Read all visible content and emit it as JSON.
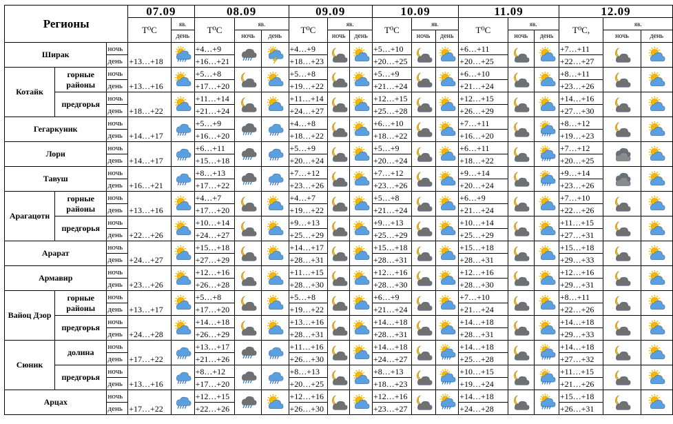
{
  "header": {
    "regions_label": "Регионы",
    "dates": [
      "07.09",
      "08.09",
      "09.09",
      "10.09",
      "11.09",
      "12.09"
    ],
    "temp_labels": [
      "T⁰C",
      "T⁰C",
      "T⁰C",
      "T⁰C",
      "T⁰C",
      "T⁰C,"
    ],
    "phen_label": "яв.",
    "night_label": "ночь",
    "day_label": "день"
  },
  "tod": {
    "night": "ночь",
    "day": "день"
  },
  "regions": [
    {
      "name": "Ширак",
      "areas": [
        {
          "name": "",
          "t07": "+13…+18",
          "t08": [
            "+4…+9",
            "+16…+21"
          ],
          "t09": [
            "+4…+9",
            "+18…+23"
          ],
          "t10": [
            "+5…+10",
            "+20…+25"
          ],
          "t11": [
            "+6…+11",
            "+20…+25"
          ],
          "t12": [
            "+7…+11",
            "+22…+27"
          ]
        }
      ]
    },
    {
      "name": "Котайк",
      "areas": [
        {
          "name": "горные районы",
          "t07": "+13…+16",
          "t08": [
            "+5…+8",
            "+17…+20"
          ],
          "t09": [
            "+5…+8",
            "+19…+22"
          ],
          "t10": [
            "+5…+9",
            "+21…+24"
          ],
          "t11": [
            "+6…+10",
            "+21…+24"
          ],
          "t12": [
            "+8…+11",
            "+23…+26"
          ]
        },
        {
          "name": "предгорья",
          "t07": "+18…+22",
          "t08": [
            "+11…+14",
            "+21…+24"
          ],
          "t09": [
            "+11…+14",
            "+24…+27"
          ],
          "t10": [
            "+12…+15",
            "+25…+28"
          ],
          "t11": [
            "+12…+15",
            "+26…+29"
          ],
          "t12": [
            "+14…+16",
            "+27…+30"
          ]
        }
      ]
    },
    {
      "name": "Гегаркуник",
      "areas": [
        {
          "name": "",
          "t07": "+14…+17",
          "t08": [
            "+5…+9",
            "+16…+20"
          ],
          "t09": [
            "+4…+8",
            "+18…+22"
          ],
          "t10": [
            "+6…+10",
            "+18…+22"
          ],
          "t11": [
            "+7…+11",
            "+16…+20"
          ],
          "t12": [
            "+8…+12",
            "+19…+23"
          ]
        }
      ]
    },
    {
      "name": "Лори",
      "areas": [
        {
          "name": "",
          "t07": "+14…+17",
          "t08": [
            "+6…+11",
            "+15…+18"
          ],
          "t09": [
            "+5…+9",
            "+20…+24"
          ],
          "t10": [
            "+5…+9",
            "+20…+24"
          ],
          "t11": [
            "+6…+11",
            "+18…+22"
          ],
          "t12": [
            "+7…+12",
            "+20…+25"
          ]
        }
      ]
    },
    {
      "name": "Тавуш",
      "areas": [
        {
          "name": "",
          "t07": "+16…+21",
          "t08": [
            "+8…+13",
            "+17…+22"
          ],
          "t09": [
            "+7…+12",
            "+23…+26"
          ],
          "t10": [
            "+7…+12",
            "+23…+26"
          ],
          "t11": [
            "+9…+14",
            "+20…+24"
          ],
          "t12": [
            "+9…+14",
            "+23…+26"
          ]
        }
      ]
    },
    {
      "name": "Арагацотн",
      "areas": [
        {
          "name": "горные районы",
          "t07": "+13…+16",
          "t08": [
            "+4…+7",
            "+17…+20"
          ],
          "t09": [
            "+4…+7",
            "+19…+22"
          ],
          "t10": [
            "+5…+8",
            "+21…+24"
          ],
          "t11": [
            "+6…+9",
            "+21…+24"
          ],
          "t12": [
            "+7…+10",
            "+22…+26"
          ]
        },
        {
          "name": "предгорья",
          "t07": "+22…+26",
          "t08": [
            "+10…+14",
            "+24…+27"
          ],
          "t09": [
            "+9…+13",
            "+25…+29"
          ],
          "t10": [
            "+9…+13",
            "+25…+29"
          ],
          "t11": [
            "+10…+14",
            "+25…+29"
          ],
          "t12": [
            "+11…+15",
            "+27…+31"
          ]
        }
      ]
    },
    {
      "name": "Арарат",
      "areas": [
        {
          "name": "",
          "t07": "+24…+27",
          "t08": [
            "+15…+18",
            "+27…+29"
          ],
          "t09": [
            "+14…+17",
            "+28…+31"
          ],
          "t10": [
            "+15…+18",
            "+28…+31"
          ],
          "t11": [
            "+15…+18",
            "+28…+31"
          ],
          "t12": [
            "+15…+18",
            "+29…+33"
          ]
        }
      ]
    },
    {
      "name": "Армавир",
      "areas": [
        {
          "name": "",
          "t07": "+23…+26",
          "t08": [
            "+12…+16",
            "+26…+28"
          ],
          "t09": [
            "+11…+15",
            "+28…+30"
          ],
          "t10": [
            "+12…+16",
            "+28…+30"
          ],
          "t11": [
            "+12…+16",
            "+28…+30"
          ],
          "t12": [
            "+12…+16",
            "+29…+31"
          ]
        }
      ]
    },
    {
      "name": "Вайоц Дзор",
      "areas": [
        {
          "name": "горные районы",
          "t07": "+13…+17",
          "t08": [
            "+5…+8",
            "+17…+20"
          ],
          "t09": [
            "+5…+8",
            "+19…+22"
          ],
          "t10": [
            "+6…+9",
            "+21…+24"
          ],
          "t11": [
            "+7…+10",
            "+21…+24"
          ],
          "t12": [
            "+8…+11",
            "+22…+26"
          ]
        },
        {
          "name": "предгорья",
          "t07": "+24…+28",
          "t08": [
            "+14…+18",
            "+26…+29"
          ],
          "t09": [
            "+13…+16",
            "+28…+31"
          ],
          "t10": [
            "+14…+18",
            "+28…+31"
          ],
          "t11": [
            "+14…+18",
            "+28…+31"
          ],
          "t12": [
            "+14…+18",
            "+29…+33"
          ]
        }
      ]
    },
    {
      "name": "Сюник",
      "areas": [
        {
          "name": "долина",
          "t07": "+17…+22",
          "t08": [
            "+13…+17",
            "+21…+26"
          ],
          "t09": [
            "+11…+16",
            "+26…+30"
          ],
          "t10": [
            "+14…+18",
            "+24…+27"
          ],
          "t11": [
            "+14…+18",
            "+25…+28"
          ],
          "t12": [
            "+14…+18",
            "+27…+32"
          ]
        },
        {
          "name": "предгорья",
          "t07": "+13…+16",
          "t08": [
            "+8…+12",
            "+17…+20"
          ],
          "t09": [
            "+8…+13",
            "+20…+25"
          ],
          "t10": [
            "+8…+13",
            "+18…+23"
          ],
          "t11": [
            "+10…+15",
            "+19…+24"
          ],
          "t12": [
            "+11…+15",
            "+21…+26"
          ]
        }
      ]
    },
    {
      "name": "Арцах",
      "areas": [
        {
          "name": "",
          "t07": "+17…+22",
          "t08": [
            "+12…+15",
            "+22…+26"
          ],
          "t09": [
            "+12…+16",
            "+26…+30"
          ],
          "t10": [
            "+12…+16",
            "+23…+27"
          ],
          "t11": [
            "+14…+18",
            "+24…+28"
          ],
          "t12": [
            "+15…+18",
            "+26…+31"
          ]
        }
      ]
    }
  ],
  "icons": {
    "07": [
      "sun-rain",
      "sun-cloud",
      "sun-cloud",
      "rain",
      "rain",
      "rain",
      "sun-cloud",
      "sun-cloud",
      "sun-cloud",
      "sun-cloud",
      "sun-cloud",
      "sun-cloud",
      "rain",
      "rain",
      "rain"
    ],
    "08": [
      [
        "storm-cloud",
        "sun-storm"
      ],
      [
        "moon-cloud",
        "sun-cloud"
      ],
      [
        "moon-cloud",
        "sun-cloud"
      ],
      [
        "storm-cloud",
        "rain"
      ],
      [
        "storm-cloud",
        "rain"
      ],
      [
        "storm-cloud",
        "rain"
      ],
      [
        "moon-cloud",
        "sun-cloud"
      ],
      [
        "moon-cloud",
        "sun-cloud"
      ],
      [
        "moon-cloud",
        "sun-cloud"
      ],
      [
        "moon-cloud",
        "sun-cloud"
      ],
      [
        "moon-cloud",
        "sun-cloud"
      ],
      [
        "moon-cloud",
        "sun-cloud"
      ],
      [
        "storm-cloud",
        "rain"
      ],
      [
        "storm-cloud",
        "rain"
      ],
      [
        "storm-cloud",
        "sun-cloud"
      ]
    ],
    "09": [
      [
        "moon-cloud",
        "sun-cloud"
      ],
      [
        "moon-cloud",
        "sun-cloud"
      ],
      [
        "moon-cloud",
        "sun-cloud"
      ],
      [
        "moon-cloud",
        "sun-cloud"
      ],
      [
        "moon-cloud",
        "sun-cloud"
      ],
      [
        "moon-cloud",
        "sun-cloud"
      ],
      [
        "moon-cloud",
        "sun-cloud"
      ],
      [
        "moon-cloud",
        "sun-cloud"
      ],
      [
        "moon-cloud",
        "sun-cloud"
      ],
      [
        "moon-cloud",
        "sun-cloud"
      ],
      [
        "moon-cloud",
        "sun-cloud"
      ],
      [
        "moon-cloud",
        "sun-cloud"
      ],
      [
        "moon-cloud",
        "sun-cloud"
      ],
      [
        "moon-cloud",
        "sun-cloud"
      ],
      [
        "moon-cloud",
        "sun-cloud"
      ]
    ],
    "10": [
      [
        "moon-cloud",
        "sun-cloud"
      ],
      [
        "moon-cloud",
        "sun-cloud"
      ],
      [
        "moon-cloud",
        "sun-cloud"
      ],
      [
        "moon-cloud",
        "sun-cloud"
      ],
      [
        "moon-cloud",
        "sun-cloud"
      ],
      [
        "moon-cloud",
        "sun-cloud"
      ],
      [
        "moon-cloud",
        "sun-cloud"
      ],
      [
        "moon-cloud",
        "sun-cloud"
      ],
      [
        "moon-cloud",
        "sun-cloud"
      ],
      [
        "moon-cloud",
        "sun-cloud"
      ],
      [
        "moon-cloud",
        "sun-cloud"
      ],
      [
        "moon-cloud",
        "sun-cloud"
      ],
      [
        "moon-cloud",
        "sun-rain"
      ],
      [
        "moon-cloud",
        "sun-rain"
      ],
      [
        "moon-cloud",
        "sun-rain"
      ]
    ],
    "11": [
      [
        "moon-cloud",
        "sun-cloud"
      ],
      [
        "moon-cloud",
        "sun-cloud"
      ],
      [
        "moon-cloud",
        "sun-cloud"
      ],
      [
        "moon-cloud",
        "sun-rain"
      ],
      [
        "moon-cloud",
        "sun-rain"
      ],
      [
        "moon-cloud",
        "sun-rain"
      ],
      [
        "moon-cloud",
        "sun-cloud"
      ],
      [
        "moon-cloud",
        "sun-cloud"
      ],
      [
        "moon-cloud",
        "sun-cloud"
      ],
      [
        "moon-cloud",
        "sun-cloud"
      ],
      [
        "moon-cloud",
        "sun-cloud"
      ],
      [
        "moon-cloud",
        "sun-cloud"
      ],
      [
        "moon-cloud",
        "sun-rain"
      ],
      [
        "moon-cloud",
        "sun-rain"
      ],
      [
        "moon-cloud",
        "sun-rain"
      ]
    ],
    "12": [
      [
        "moon-cloud",
        "sun-cloud"
      ],
      [
        "moon-cloud",
        "sun-cloud"
      ],
      [
        "moon-cloud",
        "sun-cloud"
      ],
      [
        "moon-cloud",
        "sun-cloud"
      ],
      [
        "dark-cloud",
        "sun-cloud"
      ],
      [
        "dark-cloud",
        "sun-cloud"
      ],
      [
        "moon-cloud",
        "sun-cloud"
      ],
      [
        "moon-cloud",
        "sun-cloud"
      ],
      [
        "moon-cloud",
        "sun-cloud"
      ],
      [
        "moon-cloud",
        "sun-cloud"
      ],
      [
        "moon-cloud",
        "sun-cloud"
      ],
      [
        "moon-cloud",
        "sun-cloud"
      ],
      [
        "moon-cloud",
        "sun-cloud"
      ],
      [
        "moon-cloud",
        "sun-cloud"
      ],
      [
        "moon-cloud",
        "sun-cloud"
      ]
    ]
  },
  "colors": {
    "sun": "#f5b800",
    "cloud": "#5aa0e0",
    "cloud_dark": "#707070",
    "moon": "#f0b830",
    "rain": "#2a6fc4",
    "bolt": "#f5d000"
  }
}
